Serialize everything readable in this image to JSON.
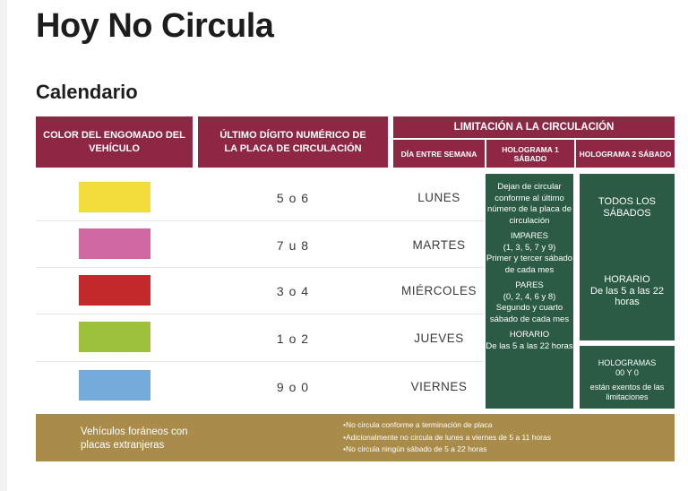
{
  "page": {
    "title": "Hoy No Circula",
    "subtitle": "Calendario"
  },
  "headers": {
    "col1": "COLOR DEL ENGOMADO DEL VEHÍCULO",
    "col2": "ÚLTIMO DÍGITO NUMÉRICO DE LA PLACA DE CIRCULACIÓN",
    "col3": "LIMITACIÓN A LA CIRCULACIÓN",
    "sub1": "DÍA ENTRE SEMANA",
    "sub2": "HOLOGRAMA 1 SÁBADO",
    "sub3": "HOLOGRAMA 2 SÁBADO"
  },
  "rows": [
    {
      "color": "#f3dd3d",
      "digits": "5 o 6",
      "day": "LUNES"
    },
    {
      "color": "#d068a3",
      "digits": "7 u 8",
      "day": "MARTES"
    },
    {
      "color": "#c3292b",
      "digits": "3 o 4",
      "day": "MIÉRCOLES"
    },
    {
      "color": "#9dc03c",
      "digits": "1 o 2",
      "day": "JUEVES"
    },
    {
      "color": "#74abdb",
      "digits": "9 o 0",
      "day": "VIERNES"
    }
  ],
  "holograma1": {
    "intro": "Dejan de circular conforme al último número de la placa de circulación",
    "impares_title": "IMPARES",
    "impares_nums": "(1, 3, 5, 7 y 9)",
    "impares_desc": "Primer y tercer sábado de cada mes",
    "pares_title": "PARES",
    "pares_nums": "(0, 2, 4, 6 y 8)",
    "pares_desc": "Segundo y cuarto sábado de cada mes",
    "horario_title": "HORARIO",
    "horario_desc": "De las 5 a las 22 horas"
  },
  "holograma2": {
    "todos": "TODOS LOS SÁBADOS",
    "horario_title": "HORARIO",
    "horario_desc": "De las 5 a las 22 horas"
  },
  "hologramas_exentos": {
    "title": "HOLOGRAMAS",
    "codes": "00 Y 0",
    "desc": "están exentos de las limitaciones"
  },
  "footer": {
    "title": "Vehículos foráneos con placas extranjeras",
    "notes": [
      "•No circula conforme a terminación de placa",
      "•Adicionalmente no circula de lunes a viernes de 5 a 11 horas",
      "•No circula ningún sábado de 5 a 22 horas"
    ]
  },
  "colors": {
    "header_bg": "#8e2744",
    "green_bg": "#2b5a45",
    "footer_bg": "#a98b4a"
  }
}
